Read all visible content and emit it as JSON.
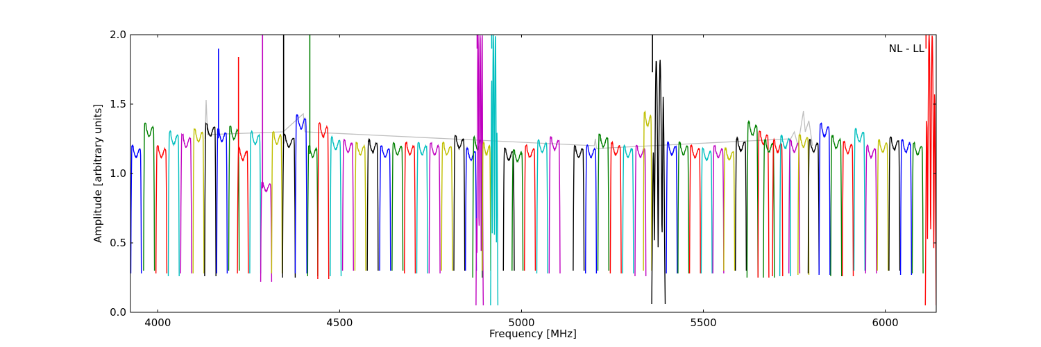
{
  "chart_data": {
    "type": "line",
    "title": "",
    "xlabel": "Frequency [MHz]",
    "ylabel": "Amplitude [arbitrary units]",
    "xlim": [
      3925,
      6140
    ],
    "ylim": [
      0.0,
      2.0
    ],
    "xticks": [
      4000,
      4500,
      5000,
      5500,
      6000
    ],
    "yticks": [
      0.0,
      0.5,
      1.0,
      1.5,
      2.0
    ],
    "xtick_labels": [
      "4000",
      "4500",
      "5000",
      "5500",
      "6000"
    ],
    "ytick_labels": [
      "0.0",
      "0.5",
      "1.0",
      "1.5",
      "2.0"
    ],
    "annotation": "NL - LL",
    "grid": false,
    "background_series": {
      "color": "#bfbfbf",
      "points": [
        [
          4130,
          1.25
        ],
        [
          4133,
          1.53
        ],
        [
          4137,
          1.28
        ],
        [
          4345,
          1.3
        ],
        [
          4400,
          1.43
        ],
        [
          4405,
          1.3
        ],
        [
          5200,
          1.2
        ],
        [
          5203,
          1.25
        ],
        [
          5206,
          1.18
        ],
        [
          5740,
          1.25
        ],
        [
          5750,
          1.3
        ],
        [
          5760,
          1.2
        ],
        [
          5775,
          1.45
        ],
        [
          5780,
          1.3
        ],
        [
          5790,
          1.38
        ],
        [
          5800,
          1.2
        ]
      ]
    },
    "series": [
      {
        "color": "#0000ff",
        "start": 3926,
        "end": 3955,
        "peak": 1.2,
        "min": 0.28
      },
      {
        "color": "#008000",
        "start": 3961,
        "end": 3991,
        "peak": 1.36,
        "min": 0.3
      },
      {
        "color": "#ff0000",
        "start": 3995,
        "end": 4025,
        "peak": 1.2,
        "min": 0.28
      },
      {
        "color": "#00bfbf",
        "start": 4029,
        "end": 4059,
        "peak": 1.3,
        "min": 0.26
      },
      {
        "color": "#bf00bf",
        "start": 4063,
        "end": 4093,
        "peak": 1.28,
        "min": 0.28
      },
      {
        "color": "#bfbf00",
        "start": 4097,
        "end": 4127,
        "peak": 1.32,
        "min": 0.28
      },
      {
        "color": "#000000",
        "start": 4129,
        "end": 4160,
        "peak": 1.36,
        "min": 0.26
      },
      {
        "color": "#0000ff",
        "start": 4162,
        "end": 4191,
        "peak": 1.32,
        "min": 0.28,
        "spike": 1.9,
        "spike_x": 4167
      },
      {
        "color": "#008000",
        "start": 4195,
        "end": 4224,
        "peak": 1.34,
        "min": 0.3
      },
      {
        "color": "#ff0000",
        "start": 4219,
        "end": 4249,
        "peak": 1.18,
        "min": 0.28,
        "spike": 1.84,
        "spike_x": 4222
      },
      {
        "color": "#00bfbf",
        "start": 4253,
        "end": 4283,
        "peak": 1.3,
        "min": 0.28
      },
      {
        "color": "#bf00bf",
        "start": 4283,
        "end": 4313,
        "peak": 0.94,
        "min": 0.22,
        "spike": 2.0,
        "spike_x": 4288
      },
      {
        "color": "#bfbf00",
        "start": 4313,
        "end": 4342,
        "peak": 1.3,
        "min": 0.28
      },
      {
        "color": "#000000",
        "start": 4343,
        "end": 4378,
        "peak": 1.28,
        "min": 0.25,
        "spike": 2.0,
        "spike_x": 4346
      },
      {
        "color": "#0000ff",
        "start": 4378,
        "end": 4410,
        "peak": 1.42,
        "min": 0.28
      },
      {
        "color": "#008000",
        "start": 4412,
        "end": 4440,
        "peak": 1.2,
        "min": 0.26,
        "spike": 2.0,
        "spike_x": 4418
      },
      {
        "color": "#ff0000",
        "start": 4440,
        "end": 4470,
        "peak": 1.36,
        "min": 0.24
      },
      {
        "color": "#00bfbf",
        "start": 4474,
        "end": 4504,
        "peak": 1.26,
        "min": 0.26
      },
      {
        "color": "#bf00bf",
        "start": 4508,
        "end": 4538,
        "peak": 1.24,
        "min": 0.3
      },
      {
        "color": "#bfbf00",
        "start": 4542,
        "end": 4572,
        "peak": 1.22,
        "min": 0.3
      },
      {
        "color": "#000000",
        "start": 4576,
        "end": 4606,
        "peak": 1.24,
        "min": 0.3
      },
      {
        "color": "#0000ff",
        "start": 4610,
        "end": 4640,
        "peak": 1.2,
        "min": 0.3
      },
      {
        "color": "#008000",
        "start": 4644,
        "end": 4674,
        "peak": 1.22,
        "min": 0.3
      },
      {
        "color": "#ff0000",
        "start": 4678,
        "end": 4708,
        "peak": 1.22,
        "min": 0.28
      },
      {
        "color": "#00bfbf",
        "start": 4712,
        "end": 4742,
        "peak": 1.22,
        "min": 0.28
      },
      {
        "color": "#bf00bf",
        "start": 4746,
        "end": 4776,
        "peak": 1.22,
        "min": 0.28
      },
      {
        "color": "#bfbf00",
        "start": 4780,
        "end": 4810,
        "peak": 1.22,
        "min": 0.3
      },
      {
        "color": "#000000",
        "start": 4814,
        "end": 4844,
        "peak": 1.27,
        "min": 0.3
      },
      {
        "color": "#0000ff",
        "start": 4846,
        "end": 4876,
        "peak": 1.18,
        "min": 0.3
      },
      {
        "color": "#008000",
        "start": 4866,
        "end": 4892,
        "peak": 1.26,
        "min": 0.25
      },
      {
        "color": "#bf00bf",
        "start": 4875,
        "end": 4895,
        "peak": 2.0,
        "min": 0.05,
        "spike": 2.0,
        "spike_x": 4878,
        "noisy": true
      },
      {
        "color": "#bfbf00",
        "start": 4892,
        "end": 4915,
        "peak": 1.22,
        "min": 0.3
      },
      {
        "color": "#00bfbf",
        "start": 4915,
        "end": 4935,
        "peak": 2.0,
        "min": 0.05,
        "spike": 2.0,
        "spike_x": 4918,
        "noisy": true
      },
      {
        "color": "#000000",
        "start": 4950,
        "end": 4980,
        "peak": 1.18,
        "min": 0.3
      },
      {
        "color": "#008000",
        "start": 4974,
        "end": 5004,
        "peak": 1.17,
        "min": 0.3
      },
      {
        "color": "#ff0000",
        "start": 5008,
        "end": 5038,
        "peak": 1.2,
        "min": 0.3
      },
      {
        "color": "#00bfbf",
        "start": 5042,
        "end": 5072,
        "peak": 1.24,
        "min": 0.28
      },
      {
        "color": "#bf00bf",
        "start": 5076,
        "end": 5106,
        "peak": 1.26,
        "min": 0.28
      },
      {
        "color": "#000000",
        "start": 5142,
        "end": 5172,
        "peak": 1.2,
        "min": 0.3
      },
      {
        "color": "#0000ff",
        "start": 5176,
        "end": 5206,
        "peak": 1.2,
        "min": 0.28
      },
      {
        "color": "#008000",
        "start": 5210,
        "end": 5240,
        "peak": 1.28,
        "min": 0.3
      },
      {
        "color": "#ff0000",
        "start": 5244,
        "end": 5274,
        "peak": 1.22,
        "min": 0.28
      },
      {
        "color": "#00bfbf",
        "start": 5278,
        "end": 5308,
        "peak": 1.2,
        "min": 0.28
      },
      {
        "color": "#bf00bf",
        "start": 5312,
        "end": 5342,
        "peak": 1.2,
        "min": 0.26
      },
      {
        "color": "#bfbf00",
        "start": 5335,
        "end": 5358,
        "peak": 1.44,
        "min": 0.3
      },
      {
        "color": "#000000",
        "start": 5358,
        "end": 5395,
        "peak": 1.82,
        "min": 0.06,
        "spike": 2.0,
        "spike_x": 5360,
        "noisy": true
      },
      {
        "color": "#0000ff",
        "start": 5398,
        "end": 5428,
        "peak": 1.22,
        "min": 0.28
      },
      {
        "color": "#008000",
        "start": 5430,
        "end": 5460,
        "peak": 1.22,
        "min": 0.28
      },
      {
        "color": "#ff0000",
        "start": 5462,
        "end": 5492,
        "peak": 1.2,
        "min": 0.28
      },
      {
        "color": "#00bfbf",
        "start": 5494,
        "end": 5524,
        "peak": 1.18,
        "min": 0.28
      },
      {
        "color": "#bf00bf",
        "start": 5526,
        "end": 5556,
        "peak": 1.2,
        "min": 0.28
      },
      {
        "color": "#bfbf00",
        "start": 5556,
        "end": 5586,
        "peak": 1.18,
        "min": 0.3
      },
      {
        "color": "#000000",
        "start": 5588,
        "end": 5618,
        "peak": 1.25,
        "min": 0.3
      },
      {
        "color": "#008000",
        "start": 5620,
        "end": 5650,
        "peak": 1.37,
        "min": 0.25
      },
      {
        "color": "#ff0000",
        "start": 5650,
        "end": 5680,
        "peak": 1.3,
        "min": 0.25
      },
      {
        "color": "#008000",
        "start": 5665,
        "end": 5695,
        "peak": 1.24,
        "min": 0.25
      },
      {
        "color": "#ff0000",
        "start": 5690,
        "end": 5718,
        "peak": 1.24,
        "min": 0.26
      },
      {
        "color": "#00bfbf",
        "start": 5710,
        "end": 5740,
        "peak": 1.27,
        "min": 0.26
      },
      {
        "color": "#bf00bf",
        "start": 5735,
        "end": 5765,
        "peak": 1.24,
        "min": 0.28
      },
      {
        "color": "#bfbf00",
        "start": 5760,
        "end": 5790,
        "peak": 1.28,
        "min": 0.27
      },
      {
        "color": "#000000",
        "start": 5788,
        "end": 5818,
        "peak": 1.24,
        "min": 0.28
      },
      {
        "color": "#0000ff",
        "start": 5818,
        "end": 5848,
        "peak": 1.36,
        "min": 0.27
      },
      {
        "color": "#008000",
        "start": 5850,
        "end": 5880,
        "peak": 1.27,
        "min": 0.26
      },
      {
        "color": "#ff0000",
        "start": 5882,
        "end": 5912,
        "peak": 1.23,
        "min": 0.26
      },
      {
        "color": "#00bfbf",
        "start": 5914,
        "end": 5944,
        "peak": 1.32,
        "min": 0.3
      },
      {
        "color": "#bf00bf",
        "start": 5946,
        "end": 5976,
        "peak": 1.2,
        "min": 0.28
      },
      {
        "color": "#bfbf00",
        "start": 5978,
        "end": 6008,
        "peak": 1.24,
        "min": 0.3
      },
      {
        "color": "#000000",
        "start": 6010,
        "end": 6040,
        "peak": 1.26,
        "min": 0.3
      },
      {
        "color": "#0000ff",
        "start": 6042,
        "end": 6072,
        "peak": 1.24,
        "min": 0.27
      },
      {
        "color": "#008000",
        "start": 6074,
        "end": 6104,
        "peak": 1.22,
        "min": 0.28
      },
      {
        "color": "#ff0000",
        "start": 6110,
        "end": 6140,
        "peak": 2.0,
        "min": 0.05,
        "spike": 2.0,
        "spike_x": 6112,
        "noisy": true
      }
    ]
  }
}
